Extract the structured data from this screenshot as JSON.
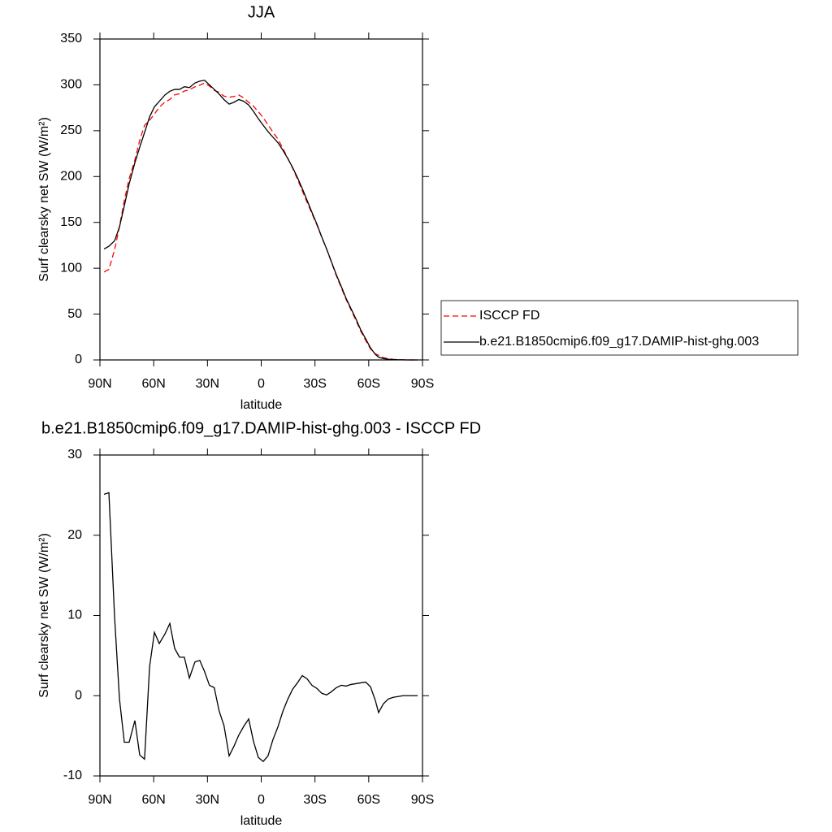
{
  "chart_data": [
    {
      "type": "line",
      "title": "JJA",
      "xlabel": "latitude",
      "ylabel": "Surf clearsky net SW (W/m²)",
      "x": [
        87.7,
        85.0,
        81.8,
        79.1,
        76.4,
        73.7,
        70.5,
        67.8,
        65.1,
        62.3,
        59.6,
        56.9,
        53.7,
        51.0,
        48.3,
        45.6,
        42.9,
        40.1,
        37.0,
        34.3,
        31.6,
        28.9,
        26.2,
        23.5,
        20.8,
        17.9,
        15.2,
        12.5,
        9.7,
        7.0,
        4.3,
        1.6,
        -1.1,
        -3.8,
        -6.5,
        -9.3,
        -12.0,
        -14.7,
        -17.5,
        -20.2,
        -22.9,
        -25.6,
        -28.3,
        -31.1,
        -33.8,
        -36.5,
        -39.2,
        -41.9,
        -44.7,
        -47.4,
        -50.1,
        -52.8,
        -55.5,
        -58.3,
        -61.0,
        -63.7,
        -65.5,
        -68.2,
        -71.0,
        -73.7,
        -76.4,
        -79.1,
        -81.8,
        -84.6,
        -87.3
      ],
      "series": [
        {
          "name": "ISCCP FD",
          "color": "#ff0000",
          "linestyle": "dashed",
          "values": [
            95.9,
            98.7,
            120.3,
            145.4,
            173.8,
            197.8,
            218.1,
            239.4,
            255.9,
            261.4,
            268.1,
            275.5,
            281.3,
            284,
            289.1,
            290.2,
            293.2,
            294.8,
            297.8,
            299.6,
            302,
            298.7,
            294,
            291.9,
            287.7,
            286.5,
            287.3,
            288.9,
            285.8,
            280.9,
            276.7,
            270.7,
            264.2,
            256.5,
            248.5,
            240.9,
            231,
            220.5,
            209.2,
            197.4,
            184.5,
            171.9,
            159.7,
            147.1,
            133.7,
            120.9,
            106.5,
            92,
            78.7,
            65.8,
            54.6,
            43.5,
            31.4,
            21.3,
            11.9,
            6.6,
            5.1,
            2.5,
            1.2,
            0.6,
            0.3,
            0.1,
            0,
            0,
            0
          ]
        },
        {
          "name": "b.e21.B1850cmip6.f09_g17.DAMIP-hist-ghg.003",
          "color": "#000000",
          "linestyle": "solid",
          "values": [
            121,
            124,
            130,
            145,
            168,
            192,
            215,
            232,
            248,
            265,
            276,
            282,
            289,
            293,
            295,
            295,
            298,
            297,
            302,
            304,
            305,
            300,
            295,
            290,
            284,
            279,
            281,
            284,
            282,
            278,
            271,
            263,
            256,
            249,
            243,
            237,
            229,
            220,
            210,
            199,
            187,
            174,
            161,
            148,
            134,
            121,
            107,
            93,
            80,
            67,
            56,
            45,
            33,
            23,
            13,
            6,
            3,
            1.5,
            0.8,
            0.4,
            0.2,
            0.1,
            0,
            0,
            0
          ]
        }
      ],
      "xlim": [
        90,
        -90
      ],
      "xticks": [
        {
          "value": 90,
          "label": "90N"
        },
        {
          "value": 60,
          "label": "60N"
        },
        {
          "value": 30,
          "label": "30N"
        },
        0,
        {
          "value": -30,
          "label": "30S"
        },
        {
          "value": -60,
          "label": "60S"
        },
        {
          "value": -90,
          "label": "90S"
        }
      ],
      "ylim": [
        0,
        350
      ],
      "yticks": [
        0,
        50,
        100,
        150,
        200,
        250,
        300,
        350
      ],
      "legend": "right"
    },
    {
      "type": "line",
      "title": "b.e21.B1850cmip6.f09_g17.DAMIP-hist-ghg.003 - ISCCP FD",
      "xlabel": "latitude",
      "ylabel": "Surf clearsky net SW (W/m²)",
      "x": [
        87.7,
        85.0,
        81.8,
        79.1,
        76.4,
        73.7,
        70.5,
        67.8,
        65.1,
        62.3,
        59.6,
        56.9,
        53.7,
        51.0,
        48.3,
        45.6,
        42.9,
        40.1,
        37.0,
        34.3,
        31.6,
        28.9,
        26.2,
        23.5,
        20.8,
        17.9,
        15.2,
        12.5,
        9.7,
        7.0,
        4.3,
        1.6,
        -1.1,
        -3.8,
        -6.5,
        -9.3,
        -12.0,
        -14.7,
        -17.5,
        -20.2,
        -22.9,
        -25.6,
        -28.3,
        -31.1,
        -33.8,
        -36.5,
        -39.2,
        -41.9,
        -44.7,
        -47.4,
        -50.1,
        -52.8,
        -55.5,
        -58.3,
        -61.0,
        -63.7,
        -65.5,
        -68.2,
        -71.0,
        -73.7,
        -76.4,
        -79.1,
        -81.8,
        -84.6,
        -87.3
      ],
      "color": "#000000",
      "values": [
        25.1,
        25.3,
        9.7,
        -0.4,
        -5.8,
        -5.8,
        -3.1,
        -7.4,
        -7.9,
        3.6,
        7.9,
        6.5,
        7.7,
        9.0,
        5.9,
        4.8,
        4.8,
        2.2,
        4.2,
        4.4,
        3.0,
        1.3,
        1.0,
        -1.9,
        -3.7,
        -7.5,
        -6.3,
        -4.9,
        -3.8,
        -2.9,
        -5.7,
        -7.7,
        -8.2,
        -7.5,
        -5.5,
        -3.9,
        -2.0,
        -0.5,
        0.8,
        1.6,
        2.5,
        2.1,
        1.3,
        0.9,
        0.3,
        0.1,
        0.5,
        1.0,
        1.3,
        1.2,
        1.4,
        1.5,
        1.6,
        1.7,
        1.1,
        -0.6,
        -2.1,
        -1.0,
        -0.4,
        -0.2,
        -0.1,
        0,
        0,
        0,
        0
      ],
      "xlim": [
        90,
        -90
      ],
      "xticks": [
        {
          "value": 90,
          "label": "90N"
        },
        {
          "value": 60,
          "label": "60N"
        },
        {
          "value": 30,
          "label": "30N"
        },
        0,
        {
          "value": -30,
          "label": "30S"
        },
        {
          "value": -60,
          "label": "60S"
        },
        {
          "value": -90,
          "label": "90S"
        }
      ],
      "ylim": [
        -10,
        30
      ],
      "yticks": [
        -10,
        0,
        10,
        20,
        30
      ]
    }
  ]
}
